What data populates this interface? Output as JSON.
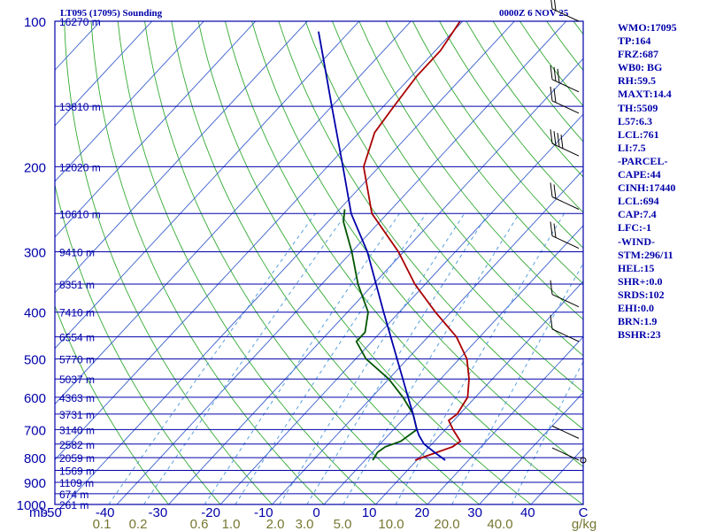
{
  "header": {
    "title": "LT095 (17095) Sounding",
    "time": "0000Z  6 NOV 25"
  },
  "colors": {
    "isobar": "#0000aa",
    "isotherm": "#3a5fcd",
    "dry_adiabat": "#33aa33",
    "mixing_ratio": "#5aa0dd",
    "temperature": "#aa0000",
    "dewpoint": "#005500",
    "parcel": "#0000aa",
    "text": "#0000aa",
    "mix_label": "#777733"
  },
  "chart_data": {
    "type": "skew-t",
    "xlabel": "C",
    "ylabel": "mb",
    "xlim": [
      -50,
      50
    ],
    "ylim": [
      1000,
      100
    ],
    "temperature_ticks": [
      "-50",
      "-40",
      "-30",
      "-20",
      "-10",
      "0",
      "10",
      "20",
      "30",
      "40",
      "C"
    ],
    "pressure_ticks": [
      "100",
      "200",
      "300",
      "400",
      "500",
      "600",
      "700",
      "800",
      "900",
      "1000"
    ],
    "mb_label": "mb",
    "mixing_ratio_unit": "g/kg",
    "mixing_ratio_labels": [
      "0.1",
      "0.2",
      "0.6",
      "1.0",
      "2.0",
      "3.0",
      "5.0",
      "10.0",
      "20.0",
      "40.0"
    ],
    "height_labels": [
      {
        "p": 100,
        "label": "16270 m"
      },
      {
        "p": 150,
        "label": "13810 m"
      },
      {
        "p": 200,
        "label": "12020 m"
      },
      {
        "p": 250,
        "label": "10610 m"
      },
      {
        "p": 300,
        "label": "9410 m"
      },
      {
        "p": 350,
        "label": "8351 m"
      },
      {
        "p": 400,
        "label": "7410 m"
      },
      {
        "p": 450,
        "label": "6554 m"
      },
      {
        "p": 500,
        "label": "5770 m"
      },
      {
        "p": 550,
        "label": "5037 m"
      },
      {
        "p": 600,
        "label": "4363 m"
      },
      {
        "p": 650,
        "label": "3731 m"
      },
      {
        "p": 700,
        "label": "3140 m"
      },
      {
        "p": 750,
        "label": "2582 m"
      },
      {
        "p": 800,
        "label": "2059 m"
      },
      {
        "p": 850,
        "label": "1569 m"
      },
      {
        "p": 900,
        "label": "1109 m"
      },
      {
        "p": 950,
        "label": "674 m"
      },
      {
        "p": 1000,
        "label": "261 m"
      }
    ],
    "series": [
      {
        "name": "temperature",
        "points": [
          [
            810,
            9.7
          ],
          [
            800,
            10.5
          ],
          [
            760,
            14.5
          ],
          [
            740,
            15
          ],
          [
            700,
            11.5
          ],
          [
            670,
            9
          ],
          [
            650,
            9.5
          ],
          [
            600,
            8.5
          ],
          [
            550,
            5.5
          ],
          [
            500,
            1.5
          ],
          [
            450,
            -4.5
          ],
          [
            400,
            -13
          ],
          [
            350,
            -22
          ],
          [
            300,
            -31
          ],
          [
            250,
            -43
          ],
          [
            200,
            -53
          ],
          [
            170,
            -57
          ],
          [
            150,
            -58
          ],
          [
            130,
            -59
          ],
          [
            115,
            -59
          ],
          [
            100,
            -60.5
          ]
        ]
      },
      {
        "name": "dewpoint",
        "points": [
          [
            810,
            1.5
          ],
          [
            780,
            1
          ],
          [
            760,
            1.5
          ],
          [
            740,
            3.5
          ],
          [
            700,
            4.5
          ],
          [
            650,
            1
          ],
          [
            600,
            -4
          ],
          [
            550,
            -10
          ],
          [
            500,
            -18
          ],
          [
            460,
            -23
          ],
          [
            440,
            -23
          ],
          [
            400,
            -26
          ],
          [
            350,
            -33
          ],
          [
            300,
            -40
          ],
          [
            260,
            -47
          ],
          [
            245,
            -49
          ]
        ]
      },
      {
        "name": "parcel",
        "points": [
          [
            810,
            15.5
          ],
          [
            780,
            12
          ],
          [
            750,
            8.5
          ],
          [
            720,
            6
          ],
          [
            700,
            4.5
          ],
          [
            650,
            1
          ],
          [
            600,
            -3
          ],
          [
            500,
            -12
          ],
          [
            400,
            -23
          ],
          [
            300,
            -37
          ],
          [
            250,
            -47
          ],
          [
            200,
            -57
          ],
          [
            150,
            -70
          ],
          [
            120,
            -80
          ],
          [
            105,
            -86
          ]
        ]
      }
    ],
    "winds": [
      {
        "p": 100,
        "barbs": 2
      },
      {
        "p": 140,
        "barbs": 3
      },
      {
        "p": 155,
        "barbs": 2
      },
      {
        "p": 190,
        "barbs": 4
      },
      {
        "p": 245,
        "barbs": 2
      },
      {
        "p": 295,
        "barbs": 2
      },
      {
        "p": 390,
        "barbs": 1
      },
      {
        "p": 460,
        "barbs": 1
      },
      {
        "p": 730,
        "barbs": 0
      },
      {
        "p": 810,
        "barbs": 0
      }
    ]
  },
  "indices": [
    "WMO:17095",
    "TP:164",
    "FRZ:687",
    "WB0: BG",
    "RH:59.5",
    "MAXT:14.4",
    "TH:5509",
    "L57:6.3",
    "LCL:761",
    "LI:7.5",
    "-PARCEL-",
    "CAPE:44",
    "CINH:17440",
    "LCL:694",
    "CAP:7.4",
    "LFC:-1",
    "-WIND-",
    "STM:296/11",
    "HEL:15",
    "SHR+:0.0",
    "SRDS:102",
    "EHI:0.0",
    "BRN:1.9",
    "BSHR:23"
  ]
}
